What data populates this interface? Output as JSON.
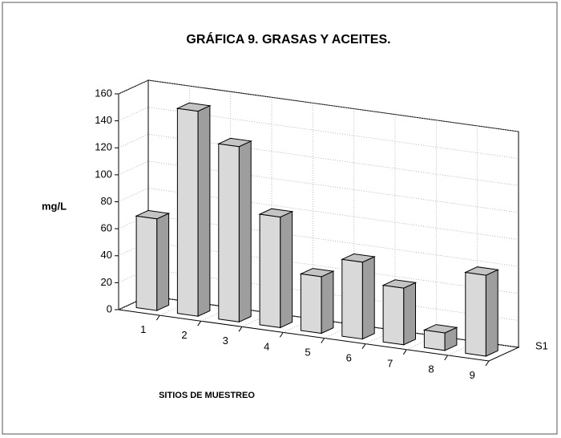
{
  "chart_data": {
    "type": "bar3d",
    "title": "GRÁFICA 9. GRASAS Y ACEITES.",
    "y_label": "mg/L",
    "x_label": "SITIOS DE MUESTREO",
    "categories": [
      "1",
      "2",
      "3",
      "4",
      "5",
      "6",
      "7",
      "8",
      "9"
    ],
    "series": [
      {
        "name": "S1",
        "color": "#d9d9d9",
        "values": [
          68,
          152,
          130,
          82,
          42,
          57,
          42,
          13,
          60
        ]
      }
    ],
    "ylim": [
      0,
      160
    ],
    "yticks": [
      0,
      20,
      40,
      60,
      80,
      100,
      120,
      140,
      160
    ],
    "grid": true
  }
}
